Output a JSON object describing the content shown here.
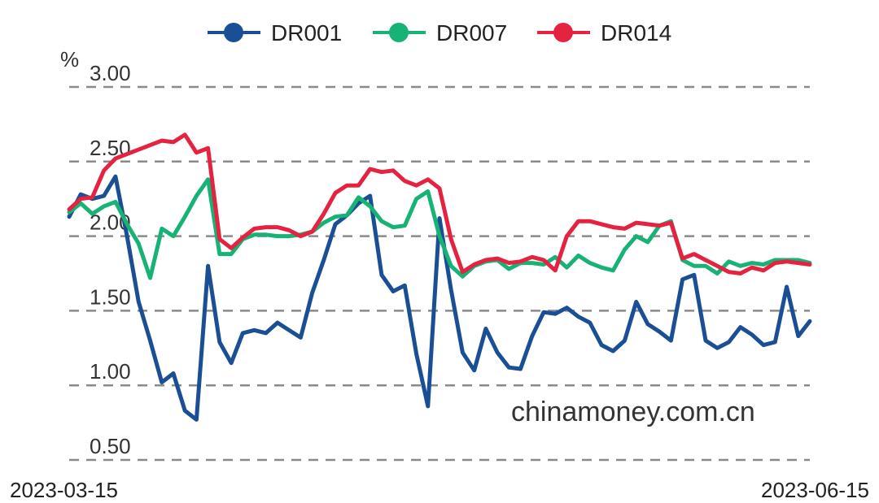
{
  "chart_data": {
    "type": "line",
    "unit_label": "%",
    "watermark": "chinamoney.com.cn",
    "ylim": [
      0.5,
      3.0
    ],
    "yticks": [
      "3.00",
      "2.50",
      "2.00",
      "1.50",
      "1.00",
      "0.50"
    ],
    "yticks_values": [
      3.0,
      2.5,
      2.0,
      1.5,
      1.0,
      0.5
    ],
    "x_start_label": "2023-03-15",
    "x_end_label": "2023-06-15",
    "grid": "horizontal-dashed",
    "legend_position": "top",
    "series": [
      {
        "name": "DR001",
        "color": "#1a4f96",
        "values": [
          2.13,
          2.28,
          2.25,
          2.27,
          2.4,
          2.0,
          1.56,
          1.3,
          1.02,
          1.08,
          0.83,
          0.77,
          1.8,
          1.29,
          1.15,
          1.35,
          1.37,
          1.35,
          1.42,
          1.37,
          1.32,
          1.62,
          1.84,
          2.08,
          2.14,
          2.22,
          2.27,
          1.74,
          1.63,
          1.67,
          1.21,
          0.86,
          2.12,
          1.64,
          1.22,
          1.1,
          1.38,
          1.22,
          1.12,
          1.11,
          1.33,
          1.49,
          1.48,
          1.52,
          1.46,
          1.42,
          1.27,
          1.23,
          1.3,
          1.56,
          1.41,
          1.36,
          1.3,
          1.71,
          1.74,
          1.3,
          1.25,
          1.29,
          1.39,
          1.34,
          1.27,
          1.29,
          1.66,
          1.33,
          1.43
        ]
      },
      {
        "name": "DR007",
        "color": "#16b374",
        "values": [
          2.16,
          2.22,
          2.15,
          2.2,
          2.23,
          2.08,
          1.95,
          1.72,
          2.05,
          2.0,
          2.13,
          2.27,
          2.38,
          1.88,
          1.88,
          1.98,
          2.01,
          2.01,
          2.0,
          2.0,
          2.01,
          2.03,
          2.09,
          2.13,
          2.14,
          2.26,
          2.2,
          2.1,
          2.06,
          2.07,
          2.25,
          2.3,
          2.0,
          1.8,
          1.73,
          1.8,
          1.83,
          1.84,
          1.78,
          1.82,
          1.82,
          1.81,
          1.86,
          1.79,
          1.87,
          1.82,
          1.79,
          1.77,
          1.91,
          2.0,
          1.96,
          2.07,
          2.1,
          1.84,
          1.8,
          1.8,
          1.75,
          1.83,
          1.8,
          1.82,
          1.81,
          1.84,
          1.84,
          1.84,
          1.82
        ]
      },
      {
        "name": "DR014",
        "color": "#e52240",
        "values": [
          2.18,
          2.25,
          2.26,
          2.44,
          2.52,
          2.55,
          2.58,
          2.61,
          2.64,
          2.63,
          2.68,
          2.56,
          2.59,
          1.98,
          1.92,
          1.99,
          2.05,
          2.06,
          2.06,
          2.04,
          2.0,
          2.03,
          2.15,
          2.29,
          2.34,
          2.34,
          2.45,
          2.43,
          2.44,
          2.37,
          2.34,
          2.38,
          2.32,
          1.98,
          1.76,
          1.81,
          1.84,
          1.85,
          1.82,
          1.83,
          1.86,
          1.84,
          1.77,
          2.0,
          2.1,
          2.1,
          2.08,
          2.06,
          2.05,
          2.09,
          2.08,
          2.07,
          2.09,
          1.85,
          1.88,
          1.84,
          1.8,
          1.76,
          1.75,
          1.79,
          1.77,
          1.82,
          1.83,
          1.82,
          1.81
        ]
      }
    ]
  }
}
